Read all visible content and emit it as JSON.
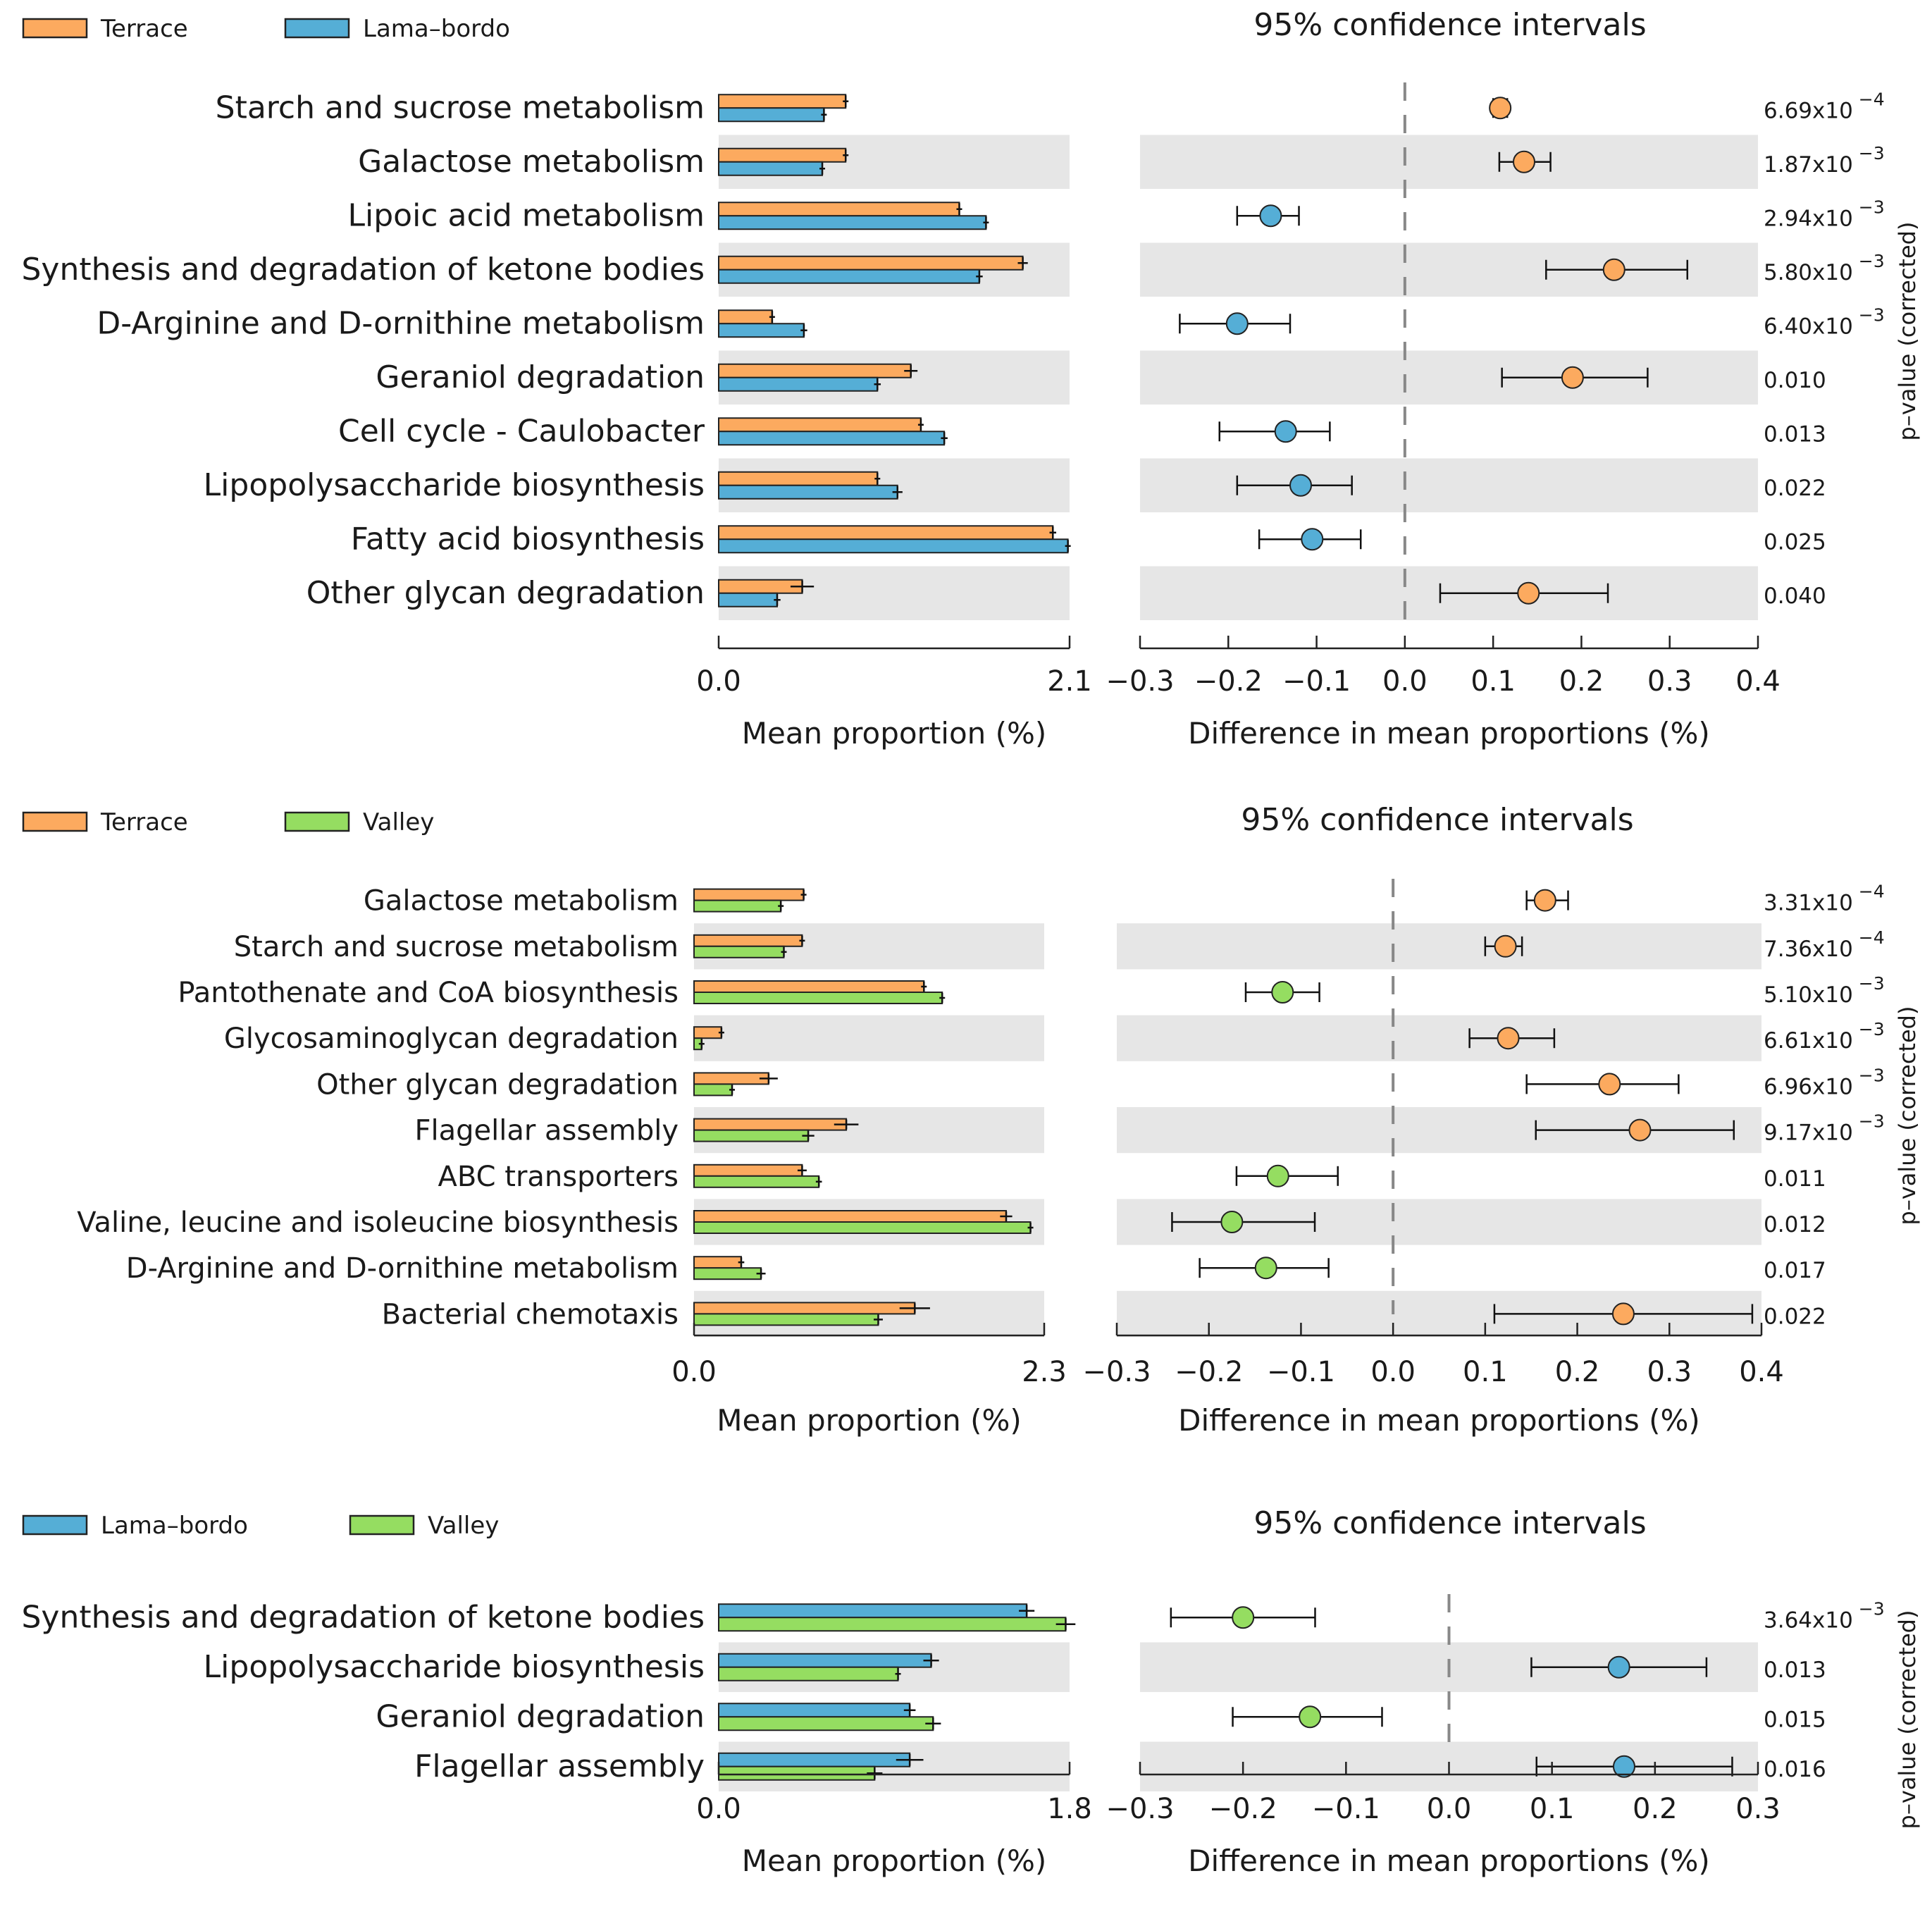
{
  "colors": {
    "terrace": "#FCAA5F",
    "lama_bordo": "#55AED6",
    "valley": "#95DD61",
    "band": "#E6E6E6",
    "axis": "#222222",
    "zero_line": "#888888"
  },
  "chart_data": [
    {
      "type": "extended_error_bar",
      "legend": [
        {
          "label": "Terrace",
          "color": "#FCAA5F"
        },
        {
          "label": "Lama–bordo",
          "color": "#55AED6"
        }
      ],
      "ci_title": "95% confidence intervals",
      "left_xlabel": "Mean proportion (%)",
      "right_xlabel": "Difference in mean proportions (%)",
      "pvalue_label": "p–value (corrected)",
      "left_xlim": [
        0,
        2.1
      ],
      "left_ticks": [
        "0.0",
        "2.1"
      ],
      "right_xlim": [
        -0.3,
        0.4
      ],
      "right_ticks": [
        "−0.3",
        "−0.2",
        "−0.1",
        "0.0",
        "0.1",
        "0.2",
        "0.3",
        "0.4"
      ],
      "categories": [
        {
          "label": "Starch and sucrose metabolism",
          "mean_a": 0.76,
          "err_a": 0.01,
          "mean_b": 0.63,
          "err_b": 0.01,
          "diff": 0.108,
          "ci": [
            0.1,
            0.116
          ],
          "favors": "a",
          "p_base": "6.69x10",
          "p_exp": "−4"
        },
        {
          "label": "Galactose metabolism",
          "mean_a": 0.76,
          "err_a": 0.01,
          "mean_b": 0.62,
          "err_b": 0.01,
          "diff": 0.135,
          "ci": [
            0.107,
            0.165
          ],
          "favors": "a",
          "p_base": "1.87x10",
          "p_exp": "−3"
        },
        {
          "label": "Lipoic acid metabolism",
          "mean_a": 1.44,
          "err_a": 0.01,
          "mean_b": 1.6,
          "err_b": 0.01,
          "diff": -0.152,
          "ci": [
            -0.19,
            -0.12
          ],
          "favors": "b",
          "p_base": "2.94x10",
          "p_exp": "−3"
        },
        {
          "label": "Synthesis and degradation of ketone bodies",
          "mean_a": 1.82,
          "err_a": 0.03,
          "mean_b": 1.56,
          "err_b": 0.02,
          "diff": 0.237,
          "ci": [
            0.16,
            0.32
          ],
          "favors": "a",
          "p_base": "5.80x10",
          "p_exp": "−3"
        },
        {
          "label": "D-Arginine and D-ornithine metabolism",
          "mean_a": 0.32,
          "err_a": 0.01,
          "mean_b": 0.51,
          "err_b": 0.02,
          "diff": -0.19,
          "ci": [
            -0.255,
            -0.13
          ],
          "favors": "b",
          "p_base": "6.40x10",
          "p_exp": "−3"
        },
        {
          "label": "Geraniol degradation",
          "mean_a": 1.15,
          "err_a": 0.04,
          "mean_b": 0.95,
          "err_b": 0.02,
          "diff": 0.19,
          "ci": [
            0.11,
            0.275
          ],
          "favors": "a",
          "p_base": "0.010",
          "p_exp": ""
        },
        {
          "label": "Cell cycle - Caulobacter",
          "mean_a": 1.21,
          "err_a": 0.01,
          "mean_b": 1.35,
          "err_b": 0.02,
          "diff": -0.135,
          "ci": [
            -0.21,
            -0.085
          ],
          "favors": "b",
          "p_base": "0.013",
          "p_exp": ""
        },
        {
          "label": "Lipopolysaccharide biosynthesis",
          "mean_a": 0.95,
          "err_a": 0.01,
          "mean_b": 1.07,
          "err_b": 0.03,
          "diff": -0.118,
          "ci": [
            -0.19,
            -0.06
          ],
          "favors": "b",
          "p_base": "0.022",
          "p_exp": ""
        },
        {
          "label": "Fatty acid biosynthesis",
          "mean_a": 2.0,
          "err_a": 0.02,
          "mean_b": 2.09,
          "err_b": 0.01,
          "diff": -0.105,
          "ci": [
            -0.165,
            -0.05
          ],
          "favors": "b",
          "p_base": "0.025",
          "p_exp": ""
        },
        {
          "label": "Other glycan degradation",
          "mean_a": 0.5,
          "err_a": 0.07,
          "mean_b": 0.35,
          "err_b": 0.02,
          "diff": 0.14,
          "ci": [
            0.04,
            0.23
          ],
          "favors": "a",
          "p_base": "0.040",
          "p_exp": ""
        }
      ]
    },
    {
      "type": "extended_error_bar",
      "legend": [
        {
          "label": "Terrace",
          "color": "#FCAA5F"
        },
        {
          "label": "Valley",
          "color": "#95DD61"
        }
      ],
      "ci_title": "95% confidence intervals",
      "left_xlabel": "Mean proportion (%)",
      "right_xlabel": "Difference in mean proportions (%)",
      "pvalue_label": "p–value (corrected)",
      "left_xlim": [
        0,
        2.3
      ],
      "left_ticks": [
        "0.0",
        "2.3"
      ],
      "right_xlim": [
        -0.3,
        0.4
      ],
      "right_ticks": [
        "−0.3",
        "−0.2",
        "−0.1",
        "0.0",
        "0.1",
        "0.2",
        "0.3",
        "0.4"
      ],
      "categories": [
        {
          "label": "Galactose metabolism",
          "mean_a": 0.72,
          "err_a": 0.01,
          "mean_b": 0.57,
          "err_b": 0.01,
          "diff": 0.165,
          "ci": [
            0.145,
            0.19
          ],
          "favors": "a",
          "p_base": "3.31x10",
          "p_exp": "−4"
        },
        {
          "label": "Starch and sucrose metabolism",
          "mean_a": 0.71,
          "err_a": 0.01,
          "mean_b": 0.59,
          "err_b": 0.01,
          "diff": 0.122,
          "ci": [
            0.1,
            0.14
          ],
          "favors": "a",
          "p_base": "7.36x10",
          "p_exp": "−4"
        },
        {
          "label": "Pantothenate and CoA biosynthesis",
          "mean_a": 1.51,
          "err_a": 0.01,
          "mean_b": 1.63,
          "err_b": 0.01,
          "diff": -0.12,
          "ci": [
            -0.16,
            -0.08
          ],
          "favors": "b",
          "p_base": "5.10x10",
          "p_exp": "−3"
        },
        {
          "label": "Glycosaminoglycan degradation",
          "mean_a": 0.18,
          "err_a": 0.01,
          "mean_b": 0.05,
          "err_b": 0.01,
          "diff": 0.125,
          "ci": [
            0.083,
            0.175
          ],
          "favors": "a",
          "p_base": "6.61x10",
          "p_exp": "−3"
        },
        {
          "label": "Other glycan degradation",
          "mean_a": 0.49,
          "err_a": 0.06,
          "mean_b": 0.25,
          "err_b": 0.01,
          "diff": 0.235,
          "ci": [
            0.145,
            0.31
          ],
          "favors": "a",
          "p_base": "6.96x10",
          "p_exp": "−3"
        },
        {
          "label": "Flagellar assembly",
          "mean_a": 1.0,
          "err_a": 0.08,
          "mean_b": 0.75,
          "err_b": 0.04,
          "diff": 0.268,
          "ci": [
            0.155,
            0.37
          ],
          "favors": "a",
          "p_base": "9.17x10",
          "p_exp": "−3"
        },
        {
          "label": "ABC transporters",
          "mean_a": 0.71,
          "err_a": 0.03,
          "mean_b": 0.82,
          "err_b": 0.02,
          "diff": -0.125,
          "ci": [
            -0.17,
            -0.06
          ],
          "favors": "b",
          "p_base": "0.011",
          "p_exp": ""
        },
        {
          "label": "Valine, leucine and isoleucine biosynthesis",
          "mean_a": 2.05,
          "err_a": 0.04,
          "mean_b": 2.21,
          "err_b": 0.01,
          "diff": -0.175,
          "ci": [
            -0.24,
            -0.085
          ],
          "favors": "b",
          "p_base": "0.012",
          "p_exp": ""
        },
        {
          "label": "D-Arginine and D-ornithine metabolism",
          "mean_a": 0.31,
          "err_a": 0.02,
          "mean_b": 0.44,
          "err_b": 0.03,
          "diff": -0.138,
          "ci": [
            -0.21,
            -0.07
          ],
          "favors": "b",
          "p_base": "0.017",
          "p_exp": ""
        },
        {
          "label": "Bacterial chemotaxis",
          "mean_a": 1.45,
          "err_a": 0.1,
          "mean_b": 1.21,
          "err_b": 0.03,
          "diff": 0.25,
          "ci": [
            0.11,
            0.39
          ],
          "favors": "a",
          "p_base": "0.022",
          "p_exp": ""
        }
      ]
    },
    {
      "type": "extended_error_bar",
      "legend": [
        {
          "label": "Lama–bordo",
          "color": "#55AED6"
        },
        {
          "label": "Valley",
          "color": "#95DD61"
        }
      ],
      "ci_title": "95% confidence intervals",
      "left_xlabel": "Mean proportion (%)",
      "right_xlabel": "Difference in mean proportions (%)",
      "pvalue_label": "p–value (corrected)",
      "left_xlim": [
        0,
        1.8
      ],
      "left_ticks": [
        "0.0",
        "1.8"
      ],
      "right_xlim": [
        -0.3,
        0.3
      ],
      "right_ticks": [
        "−0.3",
        "−0.2",
        "−0.1",
        "0.0",
        "0.1",
        "0.2",
        "0.3"
      ],
      "categories": [
        {
          "label": "Synthesis and degradation of ketone bodies",
          "mean_a": 1.58,
          "err_a": 0.04,
          "mean_b": 1.78,
          "err_b": 0.05,
          "diff": -0.2,
          "ci": [
            -0.27,
            -0.13
          ],
          "favors": "b",
          "p_base": "3.64x10",
          "p_exp": "−3"
        },
        {
          "label": "Lipopolysaccharide biosynthesis",
          "mean_a": 1.09,
          "err_a": 0.04,
          "mean_b": 0.92,
          "err_b": 0.01,
          "diff": 0.165,
          "ci": [
            0.08,
            0.25
          ],
          "favors": "a",
          "p_base": "0.013",
          "p_exp": ""
        },
        {
          "label": "Geraniol degradation",
          "mean_a": 0.98,
          "err_a": 0.03,
          "mean_b": 1.1,
          "err_b": 0.04,
          "diff": -0.135,
          "ci": [
            -0.21,
            -0.065
          ],
          "favors": "b",
          "p_base": "0.015",
          "p_exp": ""
        },
        {
          "label": "Flagellar assembly",
          "mean_a": 0.98,
          "err_a": 0.07,
          "mean_b": 0.8,
          "err_b": 0.04,
          "diff": 0.17,
          "ci": [
            0.085,
            0.275
          ],
          "favors": "a",
          "p_base": "0.016",
          "p_exp": ""
        }
      ]
    }
  ]
}
